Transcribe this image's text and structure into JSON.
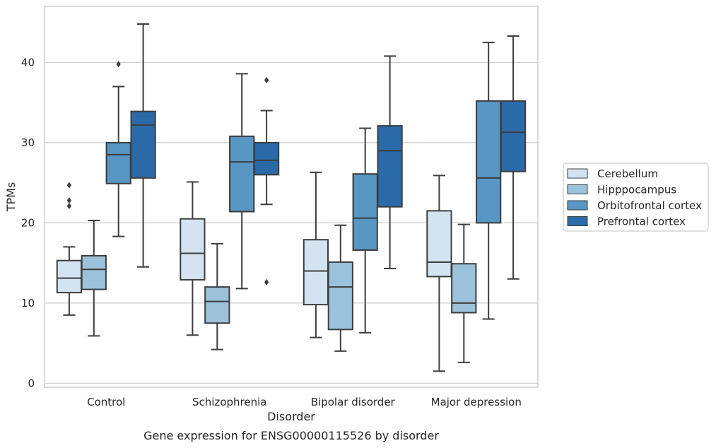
{
  "chart_data": {
    "type": "boxplot",
    "title": "",
    "caption": "Gene expression for ENSG00000115526 by disorder",
    "xlabel": "Disorder",
    "ylabel": "TPMs",
    "ylim": [
      -0.5,
      47
    ],
    "yticks": [
      0,
      10,
      20,
      30,
      40
    ],
    "grid": "horizontal",
    "legend_position": "right",
    "categories": [
      "Control",
      "Schizophrenia",
      "Bipolar disorder",
      "Major depression"
    ],
    "series": [
      {
        "name": "Cerebellum",
        "color": "#d4e3f1",
        "boxes": [
          {
            "whislo": 8.5,
            "q1": 11.3,
            "med": 13.1,
            "q3": 15.3,
            "whishi": 17.0,
            "fliers": [
              22.1,
              22.8,
              24.7
            ]
          },
          {
            "whislo": 6.0,
            "q1": 12.9,
            "med": 16.2,
            "q3": 20.5,
            "whishi": 25.1,
            "fliers": []
          },
          {
            "whislo": 5.7,
            "q1": 9.8,
            "med": 14.0,
            "q3": 17.9,
            "whishi": 26.3,
            "fliers": []
          },
          {
            "whislo": 1.5,
            "q1": 13.3,
            "med": 15.1,
            "q3": 21.5,
            "whishi": 25.9,
            "fliers": []
          }
        ]
      },
      {
        "name": "Hipppocampus",
        "color": "#9cc2db",
        "boxes": [
          {
            "whislo": 5.9,
            "q1": 11.7,
            "med": 14.2,
            "q3": 15.9,
            "whishi": 20.3,
            "fliers": []
          },
          {
            "whislo": 4.2,
            "q1": 7.5,
            "med": 10.2,
            "q3": 12.0,
            "whishi": 17.4,
            "fliers": []
          },
          {
            "whislo": 4.0,
            "q1": 6.7,
            "med": 12.0,
            "q3": 15.1,
            "whishi": 19.7,
            "fliers": []
          },
          {
            "whislo": 2.6,
            "q1": 8.8,
            "med": 10.0,
            "q3": 14.9,
            "whishi": 19.8,
            "fliers": []
          }
        ]
      },
      {
        "name": "Orbitofrontal cortex",
        "color": "#5896c4",
        "boxes": [
          {
            "whislo": 18.3,
            "q1": 24.9,
            "med": 28.5,
            "q3": 30.0,
            "whishi": 37.0,
            "fliers": [
              39.8
            ]
          },
          {
            "whislo": 11.8,
            "q1": 21.4,
            "med": 27.6,
            "q3": 30.8,
            "whishi": 38.6,
            "fliers": []
          },
          {
            "whislo": 6.3,
            "q1": 16.6,
            "med": 20.6,
            "q3": 26.1,
            "whishi": 31.8,
            "fliers": []
          },
          {
            "whislo": 8.0,
            "q1": 20.0,
            "med": 25.6,
            "q3": 35.2,
            "whishi": 42.5,
            "fliers": []
          }
        ]
      },
      {
        "name": "Prefrontal cortex",
        "color": "#2b6aa8",
        "boxes": [
          {
            "whislo": 14.5,
            "q1": 25.6,
            "med": 32.2,
            "q3": 33.9,
            "whishi": 44.8,
            "fliers": []
          },
          {
            "whislo": 22.3,
            "q1": 26.0,
            "med": 27.8,
            "q3": 30.0,
            "whishi": 34.0,
            "fliers": [
              12.6,
              37.8
            ]
          },
          {
            "whislo": 14.3,
            "q1": 22.0,
            "med": 29.0,
            "q3": 32.1,
            "whishi": 40.8,
            "fliers": []
          },
          {
            "whislo": 13.0,
            "q1": 26.4,
            "med": 31.3,
            "q3": 35.2,
            "whishi": 43.3,
            "fliers": []
          }
        ]
      }
    ]
  }
}
